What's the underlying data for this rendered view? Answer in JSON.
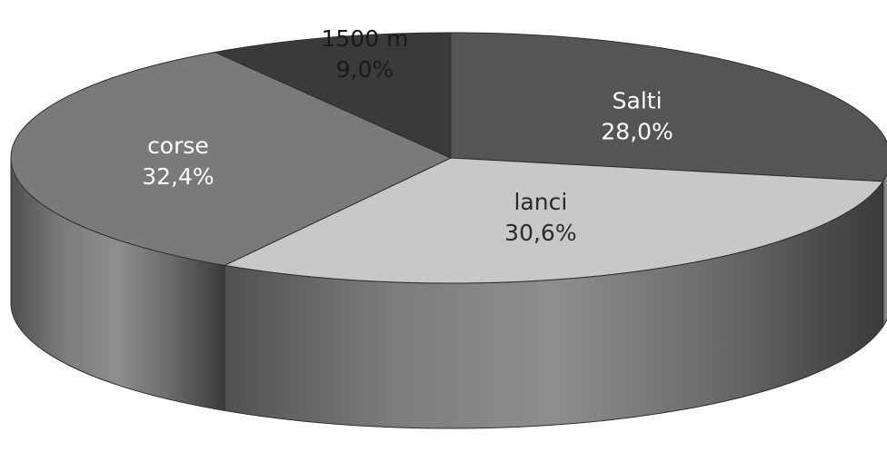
{
  "chart_data": {
    "type": "pie",
    "style": "3d",
    "start_angle_deg": -90,
    "direction": "clockwise",
    "slices": [
      {
        "label": "Salti",
        "value": 28.0,
        "value_label": "28,0%",
        "color": "#555555",
        "side_color": "#3c3c3c",
        "text_color": "#ffffff"
      },
      {
        "label": "lanci",
        "value": 30.6,
        "value_label": "30,6%",
        "color": "#c8c8c8",
        "side_color": "#8a8a8a",
        "text_color": "#2a2a2a"
      },
      {
        "label": "corse",
        "value": 32.4,
        "value_label": "32,4%",
        "color": "#7a7a7a",
        "side_color": "#5a5a5a",
        "text_color": "#ffffff"
      },
      {
        "label": "1500 m",
        "value": 9.0,
        "value_label": "9,0%",
        "color": "#3a3a3a",
        "side_color": "#262626",
        "text_color": "#1a1a1a"
      }
    ]
  }
}
